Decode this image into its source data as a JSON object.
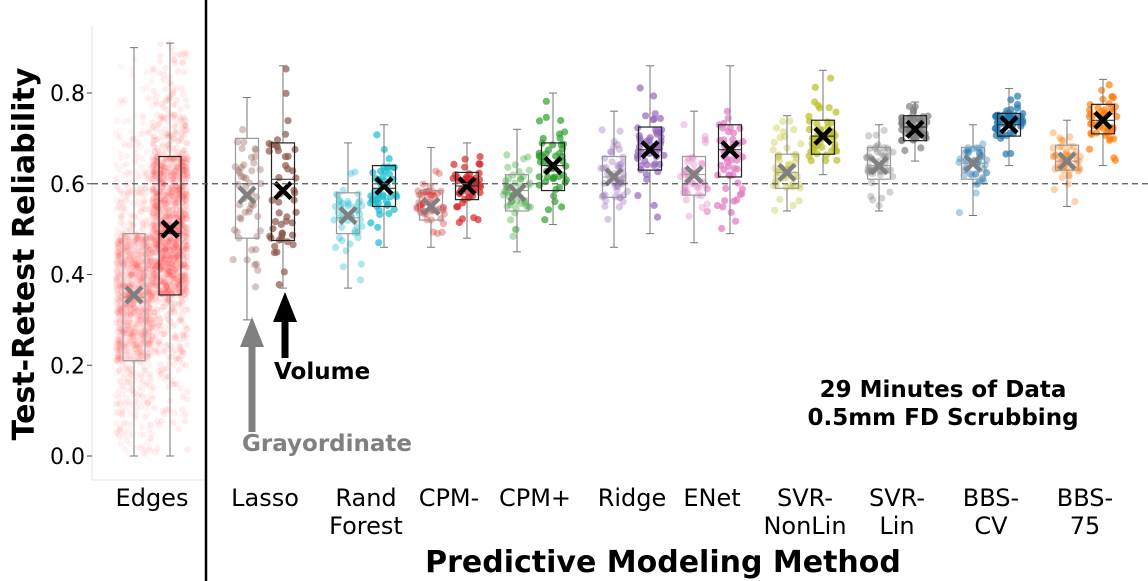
{
  "chart_data": {
    "type": "box",
    "ylabel": "Test-Retest Reliability",
    "xlabel": "Predictive Modeling Method",
    "ylim": [
      -0.005,
      0.95
    ],
    "yticks": [
      "0.0",
      "0.2",
      "0.4",
      "0.6",
      "0.8"
    ],
    "reference_line": 0.6,
    "note_lines": [
      "29 Minutes of Data",
      "0.5mm FD Scrubbing"
    ],
    "arrow_labels": {
      "grayordinate": "Grayordinate",
      "volume": "Volume"
    },
    "legend_colors": {
      "grayordinate": "#808080",
      "volume": "#000000"
    },
    "categories": [
      {
        "lines": [
          "Edges"
        ],
        "color": "#ff2020",
        "grayordinate": {
          "q1": 0.21,
          "median": 0.35,
          "q3": 0.49,
          "min": 0.0,
          "max": 0.9,
          "mean": 0.355
        },
        "volume": {
          "q1": 0.355,
          "median": 0.49,
          "q3": 0.66,
          "min": 0.0,
          "max": 0.91,
          "mean": 0.5
        }
      },
      {
        "lines": [
          "Lasso"
        ],
        "color": "#8c564b",
        "grayordinate": {
          "q1": 0.48,
          "median": 0.6,
          "q3": 0.7,
          "min": 0.3,
          "max": 0.79,
          "mean": 0.575
        },
        "volume": {
          "q1": 0.475,
          "median": 0.61,
          "q3": 0.69,
          "min": 0.37,
          "max": 0.86,
          "mean": 0.585
        }
      },
      {
        "lines": [
          "Rand",
          "Forest"
        ],
        "color": "#17becf",
        "grayordinate": {
          "q1": 0.49,
          "median": 0.525,
          "q3": 0.58,
          "min": 0.37,
          "max": 0.69,
          "mean": 0.53
        },
        "volume": {
          "q1": 0.55,
          "median": 0.59,
          "q3": 0.64,
          "min": 0.46,
          "max": 0.73,
          "mean": 0.595
        }
      },
      {
        "lines": [
          "CPM-"
        ],
        "color": "#d62728",
        "grayordinate": {
          "q1": 0.52,
          "median": 0.545,
          "q3": 0.585,
          "min": 0.46,
          "max": 0.68,
          "mean": 0.55
        },
        "volume": {
          "q1": 0.565,
          "median": 0.595,
          "q3": 0.625,
          "min": 0.48,
          "max": 0.69,
          "mean": 0.595
        }
      },
      {
        "lines": [
          "CPM+"
        ],
        "color": "#2ca02c",
        "grayordinate": {
          "q1": 0.54,
          "median": 0.585,
          "q3": 0.62,
          "min": 0.45,
          "max": 0.72,
          "mean": 0.58
        },
        "volume": {
          "q1": 0.585,
          "median": 0.64,
          "q3": 0.69,
          "min": 0.51,
          "max": 0.8,
          "mean": 0.64
        }
      },
      {
        "lines": [
          "Ridge"
        ],
        "color": "#9467bd",
        "grayordinate": {
          "q1": 0.57,
          "median": 0.615,
          "q3": 0.66,
          "min": 0.46,
          "max": 0.76,
          "mean": 0.615
        },
        "volume": {
          "q1": 0.63,
          "median": 0.675,
          "q3": 0.725,
          "min": 0.49,
          "max": 0.86,
          "mean": 0.675
        }
      },
      {
        "lines": [
          "ENet"
        ],
        "color": "#e377c2",
        "grayordinate": {
          "q1": 0.575,
          "median": 0.62,
          "q3": 0.66,
          "min": 0.47,
          "max": 0.76,
          "mean": 0.62
        },
        "volume": {
          "q1": 0.615,
          "median": 0.675,
          "q3": 0.73,
          "min": 0.49,
          "max": 0.86,
          "mean": 0.675
        }
      },
      {
        "lines": [
          "SVR-",
          "NonLin"
        ],
        "color": "#bcbd22",
        "grayordinate": {
          "q1": 0.59,
          "median": 0.625,
          "q3": 0.665,
          "min": 0.54,
          "max": 0.75,
          "mean": 0.625
        },
        "volume": {
          "q1": 0.665,
          "median": 0.705,
          "q3": 0.74,
          "min": 0.62,
          "max": 0.85,
          "mean": 0.705
        }
      },
      {
        "lines": [
          "SVR-",
          "Lin"
        ],
        "color": "#7f7f7f",
        "grayordinate": {
          "q1": 0.61,
          "median": 0.64,
          "q3": 0.68,
          "min": 0.54,
          "max": 0.73,
          "mean": 0.64
        },
        "volume": {
          "q1": 0.695,
          "median": 0.725,
          "q3": 0.75,
          "min": 0.65,
          "max": 0.78,
          "mean": 0.72
        }
      },
      {
        "lines": [
          "BBS-",
          "CV"
        ],
        "color": "#1f77b4",
        "grayordinate": {
          "q1": 0.61,
          "median": 0.645,
          "q3": 0.68,
          "min": 0.53,
          "max": 0.73,
          "mean": 0.645
        },
        "volume": {
          "q1": 0.705,
          "median": 0.73,
          "q3": 0.755,
          "min": 0.64,
          "max": 0.81,
          "mean": 0.73
        }
      },
      {
        "lines": [
          "BBS-",
          "75"
        ],
        "color": "#ff7f0e",
        "grayordinate": {
          "q1": 0.63,
          "median": 0.65,
          "q3": 0.685,
          "min": 0.55,
          "max": 0.74,
          "mean": 0.65
        },
        "volume": {
          "q1": 0.71,
          "median": 0.74,
          "q3": 0.775,
          "min": 0.64,
          "max": 0.83,
          "mean": 0.74
        }
      }
    ]
  }
}
